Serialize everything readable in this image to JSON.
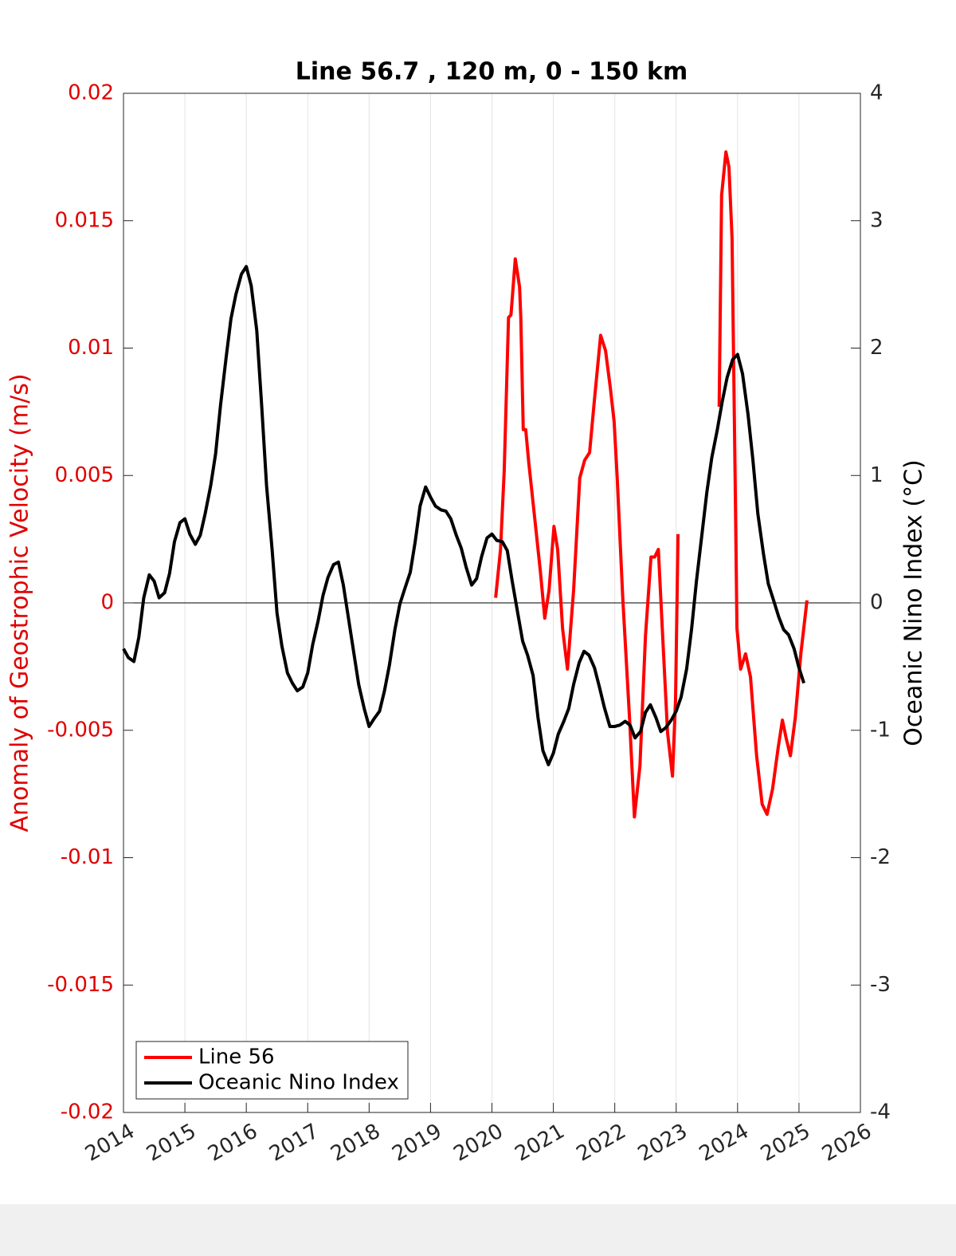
{
  "chart_data": {
    "type": "line",
    "title": "Line 56.7 , 120 m, 0 - 150 km",
    "y_label": "Anomaly of Geostrophic Velocity (m/s)",
    "y2_label": "Oceanic Nino Index (°C)",
    "y_label_color": "#e00000",
    "xlim": [
      2014,
      2026
    ],
    "xticks": [
      2014,
      2015,
      2016,
      2017,
      2018,
      2019,
      2020,
      2021,
      2022,
      2023,
      2024,
      2025,
      2026
    ],
    "ylim": [
      -0.02,
      0.02
    ],
    "yticks": [
      -0.02,
      -0.015,
      -0.01,
      -0.005,
      0,
      0.005,
      0.01,
      0.015,
      0.02
    ],
    "y2lim": [
      -4,
      4
    ],
    "y2ticks": [
      -4,
      -3,
      -2,
      -1,
      0,
      1,
      2,
      3,
      4
    ],
    "grid": true,
    "legend": "lower left",
    "series": [
      {
        "name": "Line 56",
        "color": "#ff0000",
        "x": [
          2020.06,
          2020.14,
          2020.2,
          2020.27,
          2020.31,
          2020.38,
          2020.45,
          2020.47,
          2020.51,
          2020.55,
          2020.6,
          2020.68,
          2020.79,
          2020.86,
          2020.93,
          2021.01,
          2021.07,
          2021.15,
          2021.23,
          2021.33,
          2021.43,
          2021.51,
          2021.59,
          2021.67,
          2021.77,
          2021.85,
          2021.93,
          2021.99,
          2022.04,
          2022.13,
          2022.24,
          2022.32,
          2022.41,
          2022.5,
          2022.59,
          2022.65,
          2022.71,
          2022.78,
          2022.86,
          2022.94,
          2022.99,
          2023.03,
          2023.3,
          2023.7,
          2023.74,
          2023.81,
          2023.86,
          2023.91,
          2023.96,
          2023.99,
          2024.05,
          2024.13,
          2024.21,
          2024.31,
          2024.4,
          2024.48,
          2024.57,
          2024.66,
          2024.73,
          2024.79,
          2024.86,
          2024.94,
          2025.03,
          2025.13
        ],
        "values": [
          0.0002,
          0.0021,
          0.0052,
          0.0112,
          0.0113,
          0.0135,
          0.0124,
          0.0112,
          0.0068,
          0.0068,
          0.0055,
          0.0037,
          0.0012,
          -0.0006,
          0.0005,
          0.003,
          0.0021,
          -0.001,
          -0.0026,
          0.0005,
          0.0049,
          0.0056,
          0.0059,
          0.008,
          0.0105,
          0.0099,
          0.0084,
          0.0071,
          0.0049,
          0.0002,
          -0.0045,
          -0.0084,
          -0.0064,
          -0.0013,
          0.0018,
          0.0018,
          0.0021,
          -0.0013,
          -0.0051,
          -0.0068,
          -0.0038,
          0.0027,
          null,
          0.0077,
          0.016,
          0.0177,
          0.0171,
          0.0143,
          0.0049,
          -0.001,
          -0.0026,
          -0.002,
          -0.0029,
          -0.006,
          -0.0079,
          -0.0083,
          -0.0073,
          -0.0057,
          -0.0046,
          -0.0053,
          -0.006,
          -0.0045,
          -0.002,
          0.0001
        ]
      },
      {
        "name": "Oceanic Nino Index",
        "color": "#000000",
        "axis": "y2",
        "x": [
          2014,
          2014.08,
          2014.17,
          2014.25,
          2014.33,
          2014.42,
          2014.5,
          2014.58,
          2014.67,
          2014.75,
          2014.83,
          2014.92,
          2015,
          2015.08,
          2015.17,
          2015.25,
          2015.33,
          2015.42,
          2015.5,
          2015.58,
          2015.67,
          2015.75,
          2015.83,
          2015.92,
          2016,
          2016.08,
          2016.17,
          2016.25,
          2016.33,
          2016.42,
          2016.5,
          2016.58,
          2016.67,
          2016.75,
          2016.83,
          2016.92,
          2017,
          2017.08,
          2017.17,
          2017.25,
          2017.33,
          2017.42,
          2017.5,
          2017.58,
          2017.67,
          2017.75,
          2017.83,
          2017.92,
          2018,
          2018.08,
          2018.17,
          2018.25,
          2018.33,
          2018.42,
          2018.5,
          2018.58,
          2018.67,
          2018.75,
          2018.83,
          2018.92,
          2019,
          2019.08,
          2019.17,
          2019.25,
          2019.33,
          2019.42,
          2019.5,
          2019.58,
          2019.67,
          2019.75,
          2019.83,
          2019.92,
          2020,
          2020.08,
          2020.17,
          2020.25,
          2020.33,
          2020.42,
          2020.5,
          2020.58,
          2020.67,
          2020.75,
          2020.83,
          2020.92,
          2021,
          2021.08,
          2021.17,
          2021.25,
          2021.33,
          2021.42,
          2021.5,
          2021.58,
          2021.67,
          2021.75,
          2021.83,
          2021.92,
          2022,
          2022.08,
          2022.17,
          2022.25,
          2022.33,
          2022.42,
          2022.5,
          2022.58,
          2022.67,
          2022.75,
          2022.83,
          2022.92,
          2023,
          2023.08,
          2023.17,
          2023.25,
          2023.33,
          2023.42,
          2023.5,
          2023.58,
          2023.67,
          2023.75,
          2023.83,
          2023.92,
          2024,
          2024.08,
          2024.17,
          2024.25,
          2024.33,
          2024.42,
          2024.5,
          2024.58,
          2024.67,
          2024.75,
          2024.83,
          2024.92,
          2025,
          2025.08
        ],
        "values": [
          -0.36,
          -0.43,
          -0.46,
          -0.27,
          0.04,
          0.22,
          0.17,
          0.04,
          0.08,
          0.23,
          0.48,
          0.63,
          0.66,
          0.54,
          0.46,
          0.53,
          0.7,
          0.92,
          1.17,
          1.55,
          1.92,
          2.23,
          2.42,
          2.58,
          2.64,
          2.49,
          2.14,
          1.55,
          0.92,
          0.42,
          -0.08,
          -0.34,
          -0.55,
          -0.63,
          -0.69,
          -0.66,
          -0.55,
          -0.33,
          -0.14,
          0.06,
          0.2,
          0.3,
          0.32,
          0.14,
          -0.14,
          -0.39,
          -0.64,
          -0.83,
          -0.97,
          -0.91,
          -0.85,
          -0.69,
          -0.49,
          -0.21,
          -0.01,
          0.11,
          0.24,
          0.48,
          0.76,
          0.91,
          0.83,
          0.76,
          0.73,
          0.72,
          0.66,
          0.53,
          0.43,
          0.28,
          0.14,
          0.19,
          0.36,
          0.51,
          0.54,
          0.49,
          0.48,
          0.41,
          0.17,
          -0.08,
          -0.3,
          -0.41,
          -0.57,
          -0.9,
          -1.16,
          -1.27,
          -1.18,
          -1.03,
          -0.93,
          -0.83,
          -0.64,
          -0.47,
          -0.38,
          -0.41,
          -0.51,
          -0.66,
          -0.82,
          -0.97,
          -0.97,
          -0.96,
          -0.93,
          -0.96,
          -1.06,
          -1.01,
          -0.86,
          -0.8,
          -0.9,
          -1.01,
          -0.98,
          -0.92,
          -0.85,
          -0.74,
          -0.52,
          -0.21,
          0.17,
          0.54,
          0.87,
          1.14,
          1.36,
          1.58,
          1.77,
          1.91,
          1.95,
          1.8,
          1.48,
          1.12,
          0.7,
          0.39,
          0.15,
          0.03,
          -0.11,
          -0.21,
          -0.25,
          -0.36,
          -0.51,
          -0.63
        ]
      }
    ]
  }
}
